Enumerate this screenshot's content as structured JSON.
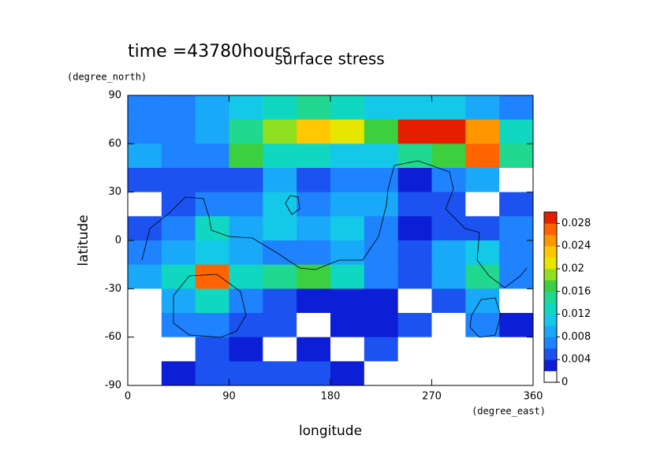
{
  "chart_data": {
    "type": "contourf",
    "title": "surface stress",
    "subtitle": "time =43780hours",
    "x_label": "longitude",
    "x_units": "(degree_east)",
    "y_label": "latitude",
    "y_units": "(degree_north)",
    "xlim": [
      0,
      360
    ],
    "xticks": [
      0,
      90,
      180,
      270,
      360
    ],
    "ylim": [
      -90,
      90
    ],
    "yticks": [
      -90,
      -60,
      -30,
      0,
      30,
      60,
      90
    ],
    "lon": [
      15,
      45,
      75,
      105,
      135,
      165,
      195,
      225,
      255,
      285,
      315,
      345
    ],
    "lat": [
      82.5,
      67.5,
      52.5,
      37.5,
      22.5,
      7.5,
      -7.5,
      -22.5,
      -37.5,
      -52.5,
      -67.5,
      -82.5
    ],
    "z": [
      [
        0.006,
        0.006,
        0.008,
        0.01,
        0.012,
        0.014,
        0.012,
        0.01,
        0.01,
        0.01,
        0.008,
        0.006
      ],
      [
        0.006,
        0.006,
        0.008,
        0.014,
        0.018,
        0.022,
        0.02,
        0.016,
        0.03,
        0.03,
        0.024,
        0.012
      ],
      [
        0.008,
        0.006,
        0.006,
        0.016,
        0.012,
        0.012,
        0.01,
        0.01,
        0.014,
        0.016,
        0.026,
        0.014
      ],
      [
        0.004,
        0.004,
        0.004,
        0.004,
        0.008,
        0.004,
        0.006,
        0.006,
        0.002,
        0.006,
        0.008,
        0
      ],
      [
        0,
        0.004,
        0.006,
        0.006,
        0.01,
        0.006,
        0.008,
        0.008,
        0.004,
        0.004,
        0,
        0.004
      ],
      [
        0.004,
        0.006,
        0.012,
        0.008,
        0.01,
        0.008,
        0.01,
        0.006,
        0.002,
        0.004,
        0.004,
        0.006
      ],
      [
        0.006,
        0.008,
        0.01,
        0.008,
        0.006,
        0.006,
        0.008,
        0.006,
        0.004,
        0.008,
        0.01,
        0.006
      ],
      [
        0.008,
        0.012,
        0.026,
        0.012,
        0.014,
        0.016,
        0.012,
        0.006,
        0.004,
        0.008,
        0.014,
        0.006
      ],
      [
        0,
        0.008,
        0.012,
        0.006,
        0.004,
        0.002,
        0.002,
        0.002,
        0,
        0.004,
        0.008,
        0
      ],
      [
        0,
        0.006,
        0.006,
        0.004,
        0.004,
        0,
        0.002,
        0.002,
        0.004,
        0,
        0.006,
        0.002
      ],
      [
        0,
        0,
        0.004,
        0.002,
        0,
        0.002,
        0,
        0.004,
        0,
        0,
        0,
        0
      ],
      [
        0,
        0.002,
        0.004,
        0.004,
        0.004,
        0.004,
        0.002,
        0,
        0,
        0,
        0,
        0
      ]
    ],
    "clim": [
      0,
      0.03
    ],
    "cticks": [
      0,
      0.004,
      0.008,
      0.012,
      0.016,
      0.02,
      0.024,
      0.028
    ],
    "colors": [
      "#ffffff",
      "#0c1fd6",
      "#1c52f0",
      "#1f82ff",
      "#1aa8f8",
      "#14c8e8",
      "#10d8c0",
      "#20d890",
      "#3cd040",
      "#8ee020",
      "#e6e600",
      "#ffc800",
      "#ff9600",
      "#ff6400",
      "#e61e00"
    ]
  }
}
